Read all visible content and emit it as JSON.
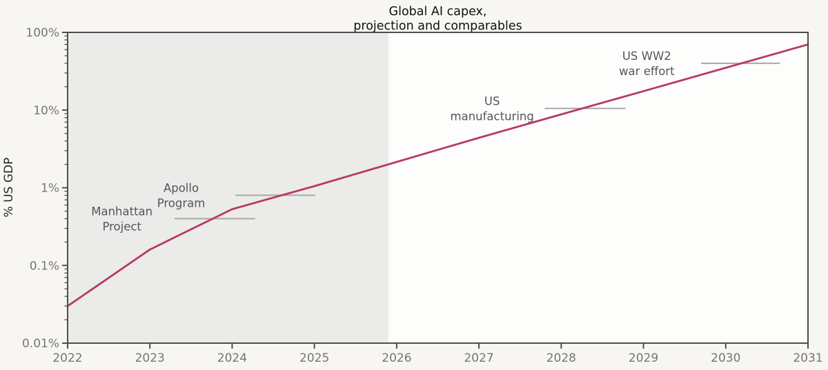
{
  "title": {
    "line1": "Global AI capex,",
    "line2": "projection and comparables"
  },
  "y_axis": {
    "label": "% US GDP",
    "scale": "log",
    "min_pct": 0.01,
    "max_pct": 100,
    "ticks": [
      {
        "label": "100%",
        "value": 100
      },
      {
        "label": "10%",
        "value": 10
      },
      {
        "label": "1%",
        "value": 1
      },
      {
        "label": "0.1%",
        "value": 0.1
      },
      {
        "label": "0.01%",
        "value": 0.01
      }
    ]
  },
  "x_axis": {
    "min": 2022,
    "max": 2031,
    "ticks": [
      {
        "label": "2022",
        "value": 2022
      },
      {
        "label": "2023",
        "value": 2023
      },
      {
        "label": "2024",
        "value": 2024
      },
      {
        "label": "2025",
        "value": 2025
      },
      {
        "label": "2026",
        "value": 2026
      },
      {
        "label": "2027",
        "value": 2027
      },
      {
        "label": "2028",
        "value": 2028
      },
      {
        "label": "2029",
        "value": 2029
      },
      {
        "label": "2030",
        "value": 2030
      },
      {
        "label": "2031",
        "value": 2031
      }
    ]
  },
  "colors": {
    "line": "#b63a62",
    "shade": "#ebebe9",
    "plot_bg": "#fdfdfc",
    "figure_bg": "#f8f6f2",
    "frame": "#4d4d4d",
    "tick_label": "#757575",
    "annotation_text": "#555555",
    "reference_line": "#a8a8a8",
    "title_text": "#111111",
    "y_label_text": "#262626"
  },
  "chart_data": {
    "type": "line",
    "title": "Global AI capex, projection and comparables",
    "xlabel": "",
    "ylabel": "% US GDP",
    "yscale": "log",
    "ylim_pct": [
      0.01,
      100
    ],
    "xlim": [
      2022,
      2031
    ],
    "grid": false,
    "legend": "none",
    "series": [
      {
        "name": "global-ai-capex-pct-us-gdp",
        "x": [
          2022,
          2023,
          2024,
          2025,
          2026,
          2027,
          2028,
          2029,
          2030,
          2031
        ],
        "y_pct_gdp": [
          0.03,
          0.16,
          0.53,
          1.05,
          2.15,
          4.4,
          8.8,
          17.5,
          35,
          70
        ],
        "color": "#b63a62"
      }
    ],
    "shaded_region": {
      "x_start": 2022,
      "x_end": 2025.9
    },
    "annotations": [
      {
        "name": "manhattan-project",
        "label_line1": "Manhattan",
        "label_line2": "Project",
        "value_pct_gdp": 0.4,
        "line_start_year": 2023.3,
        "line_end_year": 2024.28,
        "label_center_year": 2022.66
      },
      {
        "name": "apollo-program",
        "label_line1": "Apollo",
        "label_line2": "Program",
        "value_pct_gdp": 0.8,
        "line_start_year": 2024.04,
        "line_end_year": 2025.01,
        "label_center_year": 2023.38
      },
      {
        "name": "us-manufacturing",
        "label_line1": "US",
        "label_line2": "manufacturing",
        "value_pct_gdp": 10.5,
        "line_start_year": 2027.8,
        "line_end_year": 2028.78,
        "label_center_year": 2027.16
      },
      {
        "name": "us-ww2-war-effort",
        "label_line1": "US WW2",
        "label_line2": "war effort",
        "value_pct_gdp": 40,
        "line_start_year": 2029.7,
        "line_end_year": 2030.66,
        "label_center_year": 2029.04
      }
    ]
  }
}
